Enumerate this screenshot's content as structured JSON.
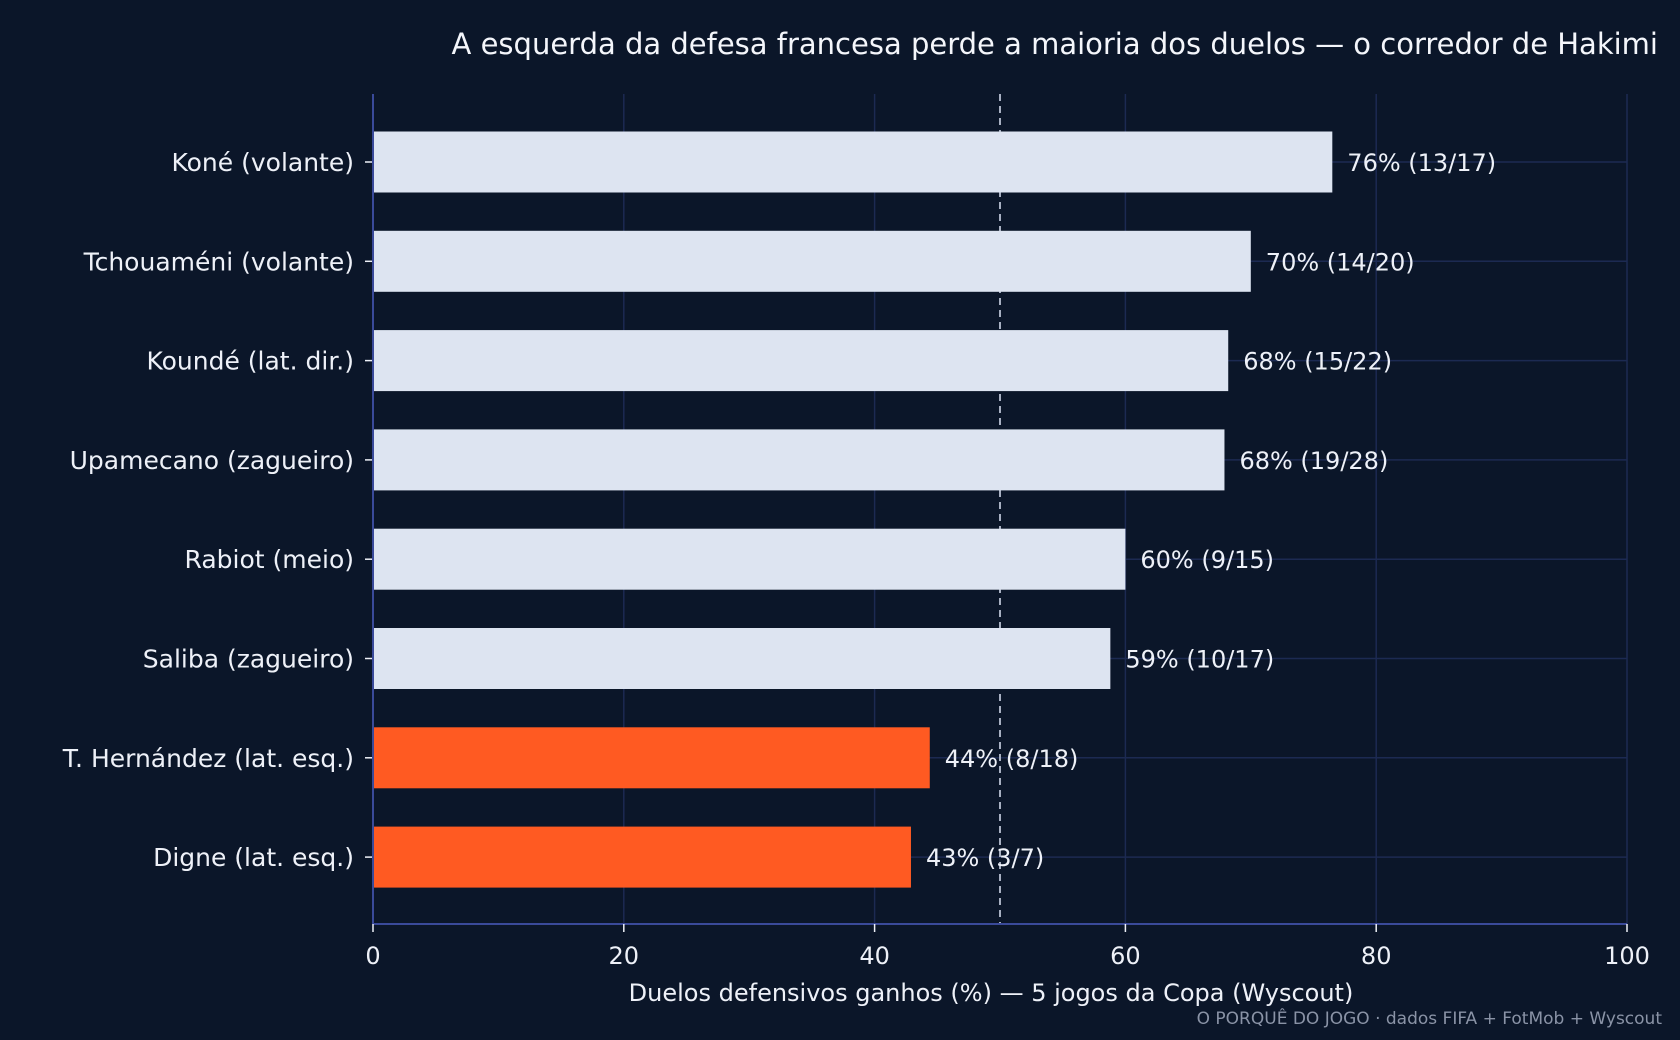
{
  "chart_data": {
    "type": "bar",
    "orientation": "horizontal",
    "title": "A esquerda da defesa francesa perde a maioria dos duelos — o corredor de Hakimi",
    "xlabel": "Duelos defensivos ganhos (%) — 5 jogos da Copa (Wyscout)",
    "ylabel": "",
    "xlim": [
      0,
      100
    ],
    "xticks": [
      0,
      20,
      40,
      60,
      80,
      100
    ],
    "grid": true,
    "reference_line": 50,
    "categories": [
      "Koné (volante)",
      "Tchouaméni (volante)",
      "Koundé (lat. dir.)",
      "Upamecano (zagueiro)",
      "Rabiot (meio)",
      "Saliba (zagueiro)",
      "T. Hernández (lat. esq.)",
      "Digne (lat. esq.)"
    ],
    "values": [
      76.5,
      70.0,
      68.2,
      67.9,
      60.0,
      58.8,
      44.4,
      42.9
    ],
    "labels": [
      "76%  (13/17)",
      "70%  (14/20)",
      "68%  (15/22)",
      "68%  (19/28)",
      "60%  (9/15)",
      "59%  (10/17)",
      "44%  (8/18)",
      "43%  (3/7)"
    ],
    "highlight": [
      false,
      false,
      false,
      false,
      false,
      false,
      true,
      true
    ]
  },
  "colors": {
    "background": "#0b1629",
    "bar_default": "#dde4f1",
    "bar_highlight": "#ff5a22",
    "grid": "#1c2a52",
    "axis": "#3a4a9a",
    "reference": "#a8b0c2",
    "text": "#eef1f8"
  },
  "footer": "O PORQUÊ DO JOGO · dados FIFA + FotMob + Wyscout"
}
